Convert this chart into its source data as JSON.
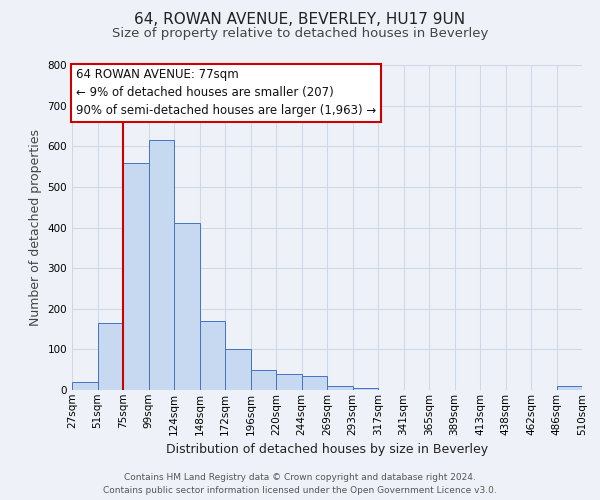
{
  "title": "64, ROWAN AVENUE, BEVERLEY, HU17 9UN",
  "subtitle": "Size of property relative to detached houses in Beverley",
  "xlabel": "Distribution of detached houses by size in Beverley",
  "ylabel": "Number of detached properties",
  "bin_labels": [
    "27sqm",
    "51sqm",
    "75sqm",
    "99sqm",
    "124sqm",
    "148sqm",
    "172sqm",
    "196sqm",
    "220sqm",
    "244sqm",
    "269sqm",
    "293sqm",
    "317sqm",
    "341sqm",
    "365sqm",
    "389sqm",
    "413sqm",
    "438sqm",
    "462sqm",
    "486sqm",
    "510sqm"
  ],
  "bar_heights": [
    20,
    165,
    560,
    615,
    410,
    170,
    100,
    50,
    40,
    35,
    10,
    5,
    0,
    0,
    0,
    0,
    0,
    0,
    0,
    10
  ],
  "bar_color": "#c6d9f0",
  "bar_edge_color": "#4472c4",
  "grid_color": "#d0d8e8",
  "bg_color": "#eef2f8",
  "vline_x": 2,
  "vline_color": "#cc0000",
  "annotation_title": "64 ROWAN AVENUE: 77sqm",
  "annotation_line1": "← 9% of detached houses are smaller (207)",
  "annotation_line2": "90% of semi-detached houses are larger (1,963) →",
  "annotation_box_color": "#ffffff",
  "annotation_box_edge": "#cc0000",
  "footer1": "Contains HM Land Registry data © Crown copyright and database right 2024.",
  "footer2": "Contains public sector information licensed under the Open Government Licence v3.0.",
  "ylim": [
    0,
    800
  ],
  "yticks": [
    0,
    100,
    200,
    300,
    400,
    500,
    600,
    700,
    800
  ],
  "title_fontsize": 11,
  "subtitle_fontsize": 9.5,
  "axis_label_fontsize": 9,
  "tick_fontsize": 7.5,
  "footer_fontsize": 6.5,
  "annotation_fontsize": 8.5
}
